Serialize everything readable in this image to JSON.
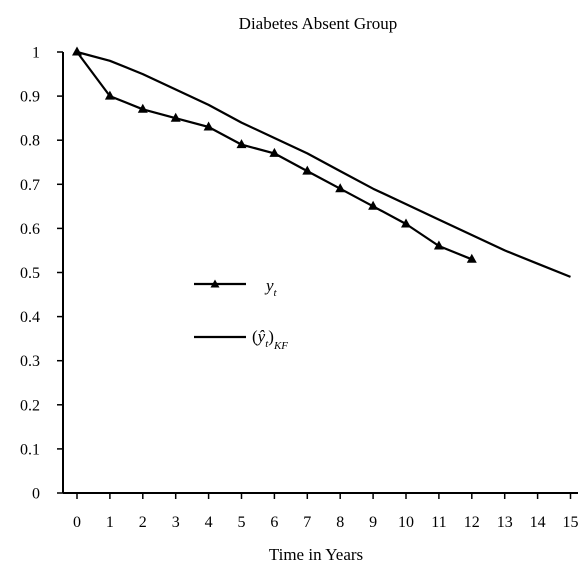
{
  "chart_data": {
    "type": "line",
    "title": "Diabetes Absent Group",
    "xlabel": "Time in Years",
    "ylabel": "",
    "xlim": [
      0,
      15
    ],
    "ylim": [
      0,
      1
    ],
    "x_ticks": [
      0,
      1,
      2,
      3,
      4,
      5,
      6,
      7,
      8,
      9,
      10,
      11,
      12,
      13,
      14,
      15
    ],
    "y_ticks": [
      0,
      0.1,
      0.2,
      0.3,
      0.4,
      0.5,
      0.6,
      0.7,
      0.8,
      0.9,
      1
    ],
    "grid": false,
    "legend_position": "center-left",
    "series": [
      {
        "name": "y_t",
        "marker": "triangle",
        "color": "#000000",
        "x": [
          0,
          1,
          2,
          3,
          4,
          5,
          6,
          7,
          8,
          9,
          10,
          11,
          12
        ],
        "y": [
          1.0,
          0.9,
          0.87,
          0.85,
          0.83,
          0.79,
          0.77,
          0.73,
          0.69,
          0.65,
          0.61,
          0.56,
          0.53
        ]
      },
      {
        "name": "(ŷ_t)_KF",
        "marker": "none",
        "color": "#000000",
        "x": [
          0,
          1,
          2,
          3,
          4,
          5,
          6,
          7,
          8,
          9,
          10,
          11,
          12,
          13,
          14,
          15
        ],
        "y": [
          1.0,
          0.98,
          0.95,
          0.915,
          0.88,
          0.84,
          0.805,
          0.77,
          0.73,
          0.69,
          0.655,
          0.62,
          0.585,
          0.55,
          0.52,
          0.49
        ]
      }
    ]
  },
  "legend": {
    "entry1_main": "y",
    "entry1_sub": "t",
    "entry2_open": "(",
    "entry2_main": "ŷ",
    "entry2_sub_inner": "t",
    "entry2_close": ")",
    "entry2_sub_outer": "KF"
  }
}
